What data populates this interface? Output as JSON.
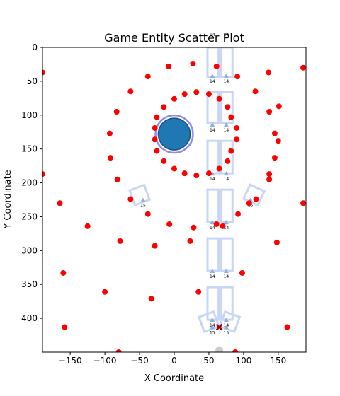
{
  "chart_data": {
    "type": "scatter",
    "title": "Game Entity Scatter Plot",
    "xlabel": "X Coordinate",
    "ylabel": "Y Coordinate",
    "xlim": [
      -190,
      190
    ],
    "ylim": [
      450,
      0
    ],
    "y_inverted": true,
    "xticks": [
      -150,
      -100,
      -50,
      0,
      50,
      100,
      150
    ],
    "yticks": [
      0,
      50,
      100,
      150,
      200,
      250,
      300,
      350,
      400
    ],
    "grid": false,
    "colors": {
      "red_points": "#ff0000",
      "blue_circle": "#1f77b4",
      "blue_ring": "#7777ee",
      "shapes_outline": "#c8d6f6",
      "triangles": "#8fb0e0",
      "x_marker": "#aa0000",
      "grey_point": "#cccccc"
    },
    "red_points": [
      [
        -190,
        37
      ],
      [
        -190,
        187
      ],
      [
        -165,
        230
      ],
      [
        -160,
        333
      ],
      [
        -158,
        413
      ],
      [
        -125,
        264
      ],
      [
        -100,
        361
      ],
      [
        -93,
        127
      ],
      [
        -92,
        163
      ],
      [
        -83,
        95
      ],
      [
        -82,
        195
      ],
      [
        -78,
        286
      ],
      [
        -80,
        450
      ],
      [
        -63,
        65
      ],
      [
        -63,
        224
      ],
      [
        -38,
        43
      ],
      [
        -38,
        246
      ],
      [
        -33,
        371
      ],
      [
        -28,
        293
      ],
      [
        -28,
        119
      ],
      [
        -28,
        136
      ],
      [
        -25,
        103
      ],
      [
        -25,
        153
      ],
      [
        -15,
        88
      ],
      [
        -15,
        168
      ],
      [
        -8,
        28
      ],
      [
        -7,
        261
      ],
      [
        0,
        76
      ],
      [
        0,
        179
      ],
      [
        15,
        69
      ],
      [
        15,
        186
      ],
      [
        23,
        286
      ],
      [
        27,
        24
      ],
      [
        28,
        266
      ],
      [
        32,
        66
      ],
      [
        32,
        189
      ],
      [
        35,
        361
      ],
      [
        50,
        69
      ],
      [
        50,
        186
      ],
      [
        61,
        261
      ],
      [
        61,
        28
      ],
      [
        65,
        76
      ],
      [
        65,
        179
      ],
      [
        70,
        264
      ],
      [
        77,
        88
      ],
      [
        77,
        168
      ],
      [
        82,
        103
      ],
      [
        82,
        153
      ],
      [
        90,
        119
      ],
      [
        90,
        136
      ],
      [
        91,
        43
      ],
      [
        92,
        246
      ],
      [
        88,
        450
      ],
      [
        98,
        333
      ],
      [
        108,
        230
      ],
      [
        117,
        65
      ],
      [
        118,
        224
      ],
      [
        136,
        37
      ],
      [
        137,
        95
      ],
      [
        137,
        187
      ],
      [
        137,
        195
      ],
      [
        145,
        127
      ],
      [
        145,
        163
      ],
      [
        148,
        288
      ],
      [
        150,
        138
      ],
      [
        151,
        87
      ],
      [
        163,
        413
      ],
      [
        186,
        30
      ],
      [
        186,
        230
      ]
    ],
    "blue_circle": {
      "x": 0,
      "y": 128,
      "r_ring_data": 27,
      "r_fill_data": 23
    },
    "rectangles": [
      [
        48,
        0,
        16,
        44
      ],
      [
        68,
        0,
        16,
        44
      ],
      [
        48,
        66,
        16,
        46
      ],
      [
        68,
        66,
        16,
        46
      ],
      [
        48,
        138,
        16,
        48
      ],
      [
        68,
        138,
        16,
        48
      ],
      [
        48,
        210,
        16,
        48
      ],
      [
        68,
        210,
        16,
        48
      ],
      [
        48,
        282,
        16,
        48
      ],
      [
        68,
        282,
        16,
        48
      ],
      [
        48,
        354,
        16,
        48
      ],
      [
        68,
        354,
        16,
        48
      ]
    ],
    "diamonds": [
      {
        "cx": -50,
        "cy": 218,
        "angle": -20
      },
      {
        "cx": 115,
        "cy": 218,
        "angle": 25
      },
      {
        "cx": 50,
        "cy": 405,
        "angle": -20
      },
      {
        "cx": 80,
        "cy": 405,
        "angle": 20
      }
    ],
    "triangles": [
      {
        "x": 55,
        "y": 43,
        "label": "14"
      },
      {
        "x": 75,
        "y": 43,
        "label": "14"
      },
      {
        "x": 55,
        "y": 115,
        "label": "14"
      },
      {
        "x": 75,
        "y": 115,
        "label": "14"
      },
      {
        "x": 55,
        "y": 187,
        "label": "14"
      },
      {
        "x": 75,
        "y": 187,
        "label": "14"
      },
      {
        "x": 55,
        "y": 259,
        "label": "14"
      },
      {
        "x": 75,
        "y": 259,
        "label": "14"
      },
      {
        "x": 55,
        "y": 331,
        "label": "14"
      },
      {
        "x": 75,
        "y": 331,
        "label": "14"
      },
      {
        "x": 55,
        "y": 403,
        "label": "14"
      },
      {
        "x": 75,
        "y": 403,
        "label": "14"
      },
      {
        "x": -45,
        "y": 226,
        "label": "15"
      },
      {
        "x": 110,
        "y": 226,
        "label": "15"
      },
      {
        "x": 55,
        "y": 414,
        "label": "15"
      },
      {
        "x": 75,
        "y": 414,
        "label": "15"
      }
    ],
    "top_labels": [
      {
        "x": 55,
        "y": 0,
        "label": "14"
      },
      {
        "x": 75,
        "y": 0,
        "label": "14"
      }
    ],
    "x_marker": {
      "x": 65,
      "y": 413
    },
    "grey_point": {
      "x": 65,
      "y": 447
    }
  }
}
